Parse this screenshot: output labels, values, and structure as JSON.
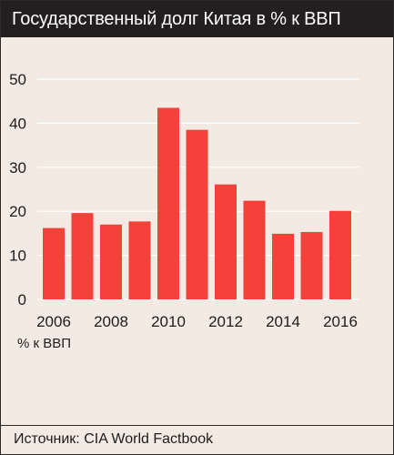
{
  "header": {
    "title": "Государственный долг Китая в % к ВВП"
  },
  "footer": {
    "source": "Источник: CIA World Factbook"
  },
  "colors": {
    "bar": "#f4423b",
    "grid": "#ffffff",
    "background": "#f3ebe3",
    "header": "#231f20"
  },
  "chart_data": {
    "type": "bar",
    "title": "Государственный долг Китая в % к ВВП",
    "xlabel": "",
    "ylabel": "% к ВВП",
    "categories": [
      "2006",
      "2007",
      "2008",
      "2009",
      "2010",
      "2011",
      "2012",
      "2013",
      "2014",
      "2015",
      "2016"
    ],
    "values": [
      16.2,
      19.6,
      17.0,
      17.7,
      43.5,
      38.5,
      26.1,
      22.4,
      14.9,
      15.3,
      20.1
    ],
    "ylim": [
      0,
      50
    ],
    "yticks": [
      0,
      10,
      20,
      30,
      40,
      50
    ],
    "xtick_labels": [
      "2006",
      "2008",
      "2010",
      "2012",
      "2014",
      "2016"
    ],
    "grid": true,
    "legend": "none"
  }
}
